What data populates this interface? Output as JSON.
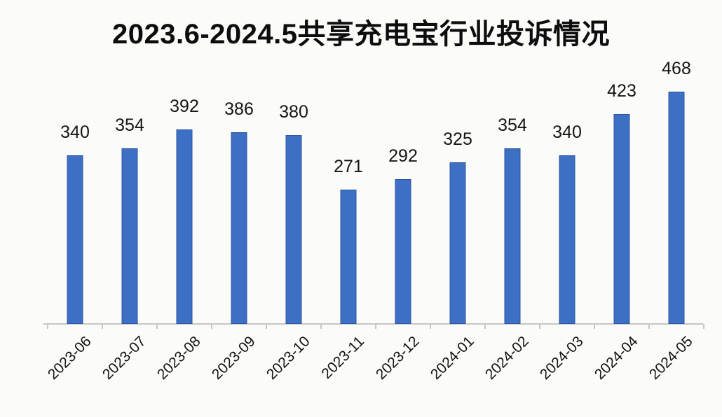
{
  "page": {
    "background_color": "#fbfbf9"
  },
  "chart_data": {
    "type": "bar",
    "title": "2023.6-2024.5共享充电宝行业投诉情况",
    "categories": [
      "2023-06",
      "2023-07",
      "2023-08",
      "2023-09",
      "2023-10",
      "2023-11",
      "2023-12",
      "2024-01",
      "2024-02",
      "2024-03",
      "2024-04",
      "2024-05"
    ],
    "values": [
      340,
      354,
      392,
      386,
      380,
      271,
      292,
      325,
      354,
      340,
      423,
      468
    ],
    "xlabel": "",
    "ylabel": "",
    "ylim": [
      0,
      470
    ],
    "grid": false,
    "legend": false,
    "data_labels": "outside-end",
    "x_tick_rotation_deg": -45,
    "bar_fill_color": "#3d6fc4",
    "bar_border_color": "#2b55a0",
    "axis_color": "#c6c6c6",
    "title_color": "#0d0d0d",
    "label_color": "#151515"
  }
}
